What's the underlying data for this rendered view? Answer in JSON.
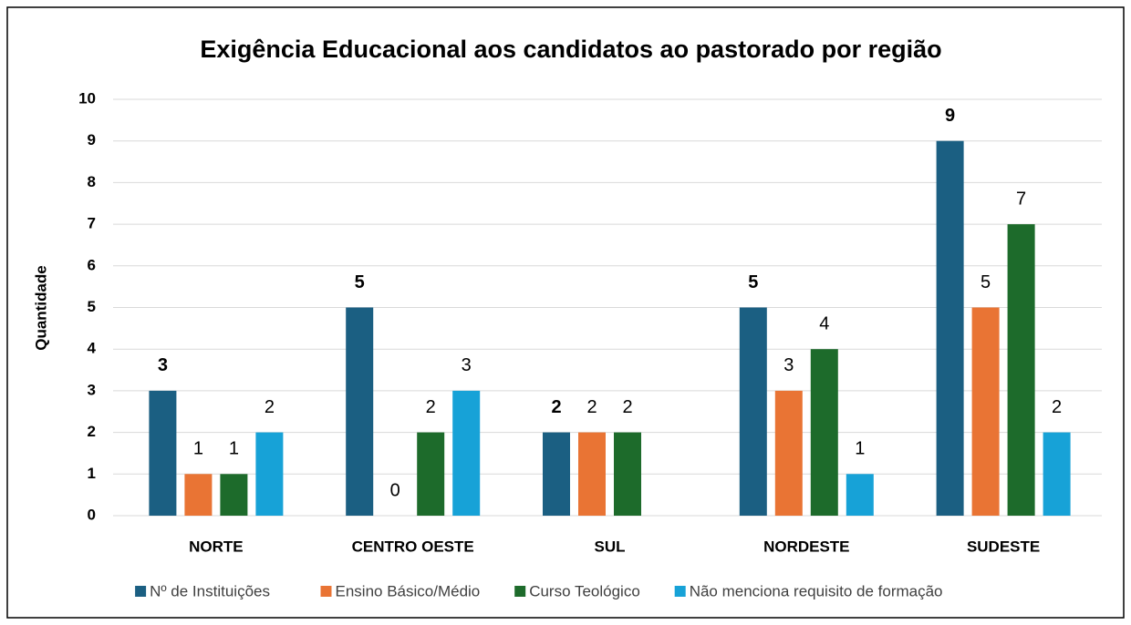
{
  "chart_data": {
    "type": "bar",
    "title": "Exigência Educacional aos candidatos ao pastorado por região",
    "y_label": "Quantidade",
    "categories": [
      "NORTE",
      "CENTRO OESTE",
      "SUL",
      "NORDESTE",
      "SUDESTE"
    ],
    "series": [
      {
        "name": "Nº de Instituições",
        "color": "#1b5f82",
        "values": [
          3,
          5,
          2,
          5,
          9
        ]
      },
      {
        "name": "Ensino Básico/Médio",
        "color": "#e97434",
        "values": [
          1,
          0,
          2,
          3,
          5
        ]
      },
      {
        "name": "Curso Teológico",
        "color": "#1d6b2b",
        "values": [
          1,
          2,
          2,
          4,
          7
        ]
      },
      {
        "name": "Não menciona requisito de formação",
        "color": "#17a2d7",
        "values": [
          2,
          3,
          null,
          1,
          2
        ]
      }
    ],
    "ylim": [
      0,
      10
    ],
    "yticks": [
      0,
      1,
      2,
      3,
      4,
      5,
      6,
      7,
      8,
      9,
      10
    ],
    "grid": true,
    "legend": "bottom"
  }
}
